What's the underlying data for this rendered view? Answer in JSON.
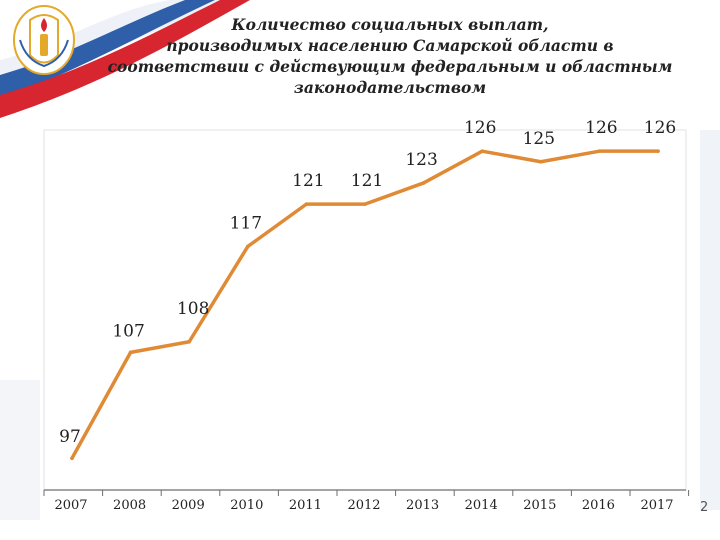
{
  "slide": {
    "title_lines": [
      "Количество социальных выплат,",
      "производимых населению Самарской области в",
      "соответствии с действующим федеральным и областным",
      "законодательством"
    ],
    "page_number": "2"
  },
  "colors": {
    "line": "#E08A35",
    "axis": "#6e6e6e",
    "title": "#222222",
    "flag_red": "#d7262f",
    "flag_blue": "#2f5fa8",
    "emblem_gold": "#e4a92a"
  },
  "icons": [
    "samara-emblem-icon"
  ],
  "chart_data": {
    "type": "line",
    "title": "",
    "xlabel": "",
    "ylabel": "",
    "categories": [
      "2007",
      "2008",
      "2009",
      "2010",
      "2011",
      "2012",
      "2013",
      "2014",
      "2015",
      "2016",
      "2017"
    ],
    "series": [
      {
        "values": [
          97,
          107,
          108,
          117,
          121,
          121,
          123,
          126,
          125,
          126,
          126
        ]
      }
    ],
    "data_labels": [
      "97",
      "107",
      "108",
      "117",
      "121",
      "121",
      "123",
      "126",
      "125",
      "126",
      "126"
    ],
    "ylim": [
      94,
      128
    ],
    "grid": false,
    "legend": "none",
    "y_axis_visible": false
  }
}
